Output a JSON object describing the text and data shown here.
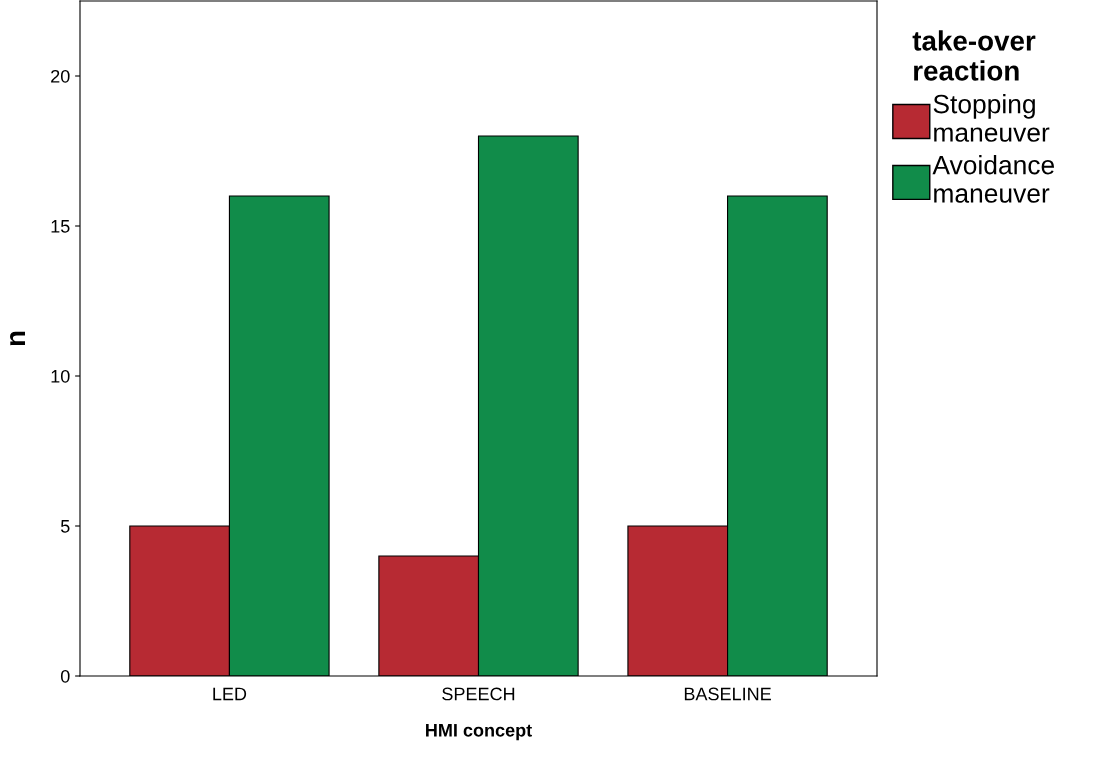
{
  "chart_data": {
    "type": "bar",
    "xlabel": "HMI concept",
    "ylabel": "n",
    "legend_title": "take-over\nreaction",
    "categories": [
      "LED",
      "SPEECH",
      "BASELINE"
    ],
    "series": [
      {
        "name": "Stopping\nmaneuver",
        "color": "#b72a33",
        "values": [
          5,
          4,
          5
        ]
      },
      {
        "name": "Avoidance\nmaneuver",
        "color": "#118c4a",
        "values": [
          16,
          18,
          16
        ]
      }
    ],
    "ylim": [
      0,
      22.5
    ],
    "yticks": [
      0,
      5,
      10,
      15,
      20
    ],
    "grid": false,
    "legend": "top right"
  }
}
